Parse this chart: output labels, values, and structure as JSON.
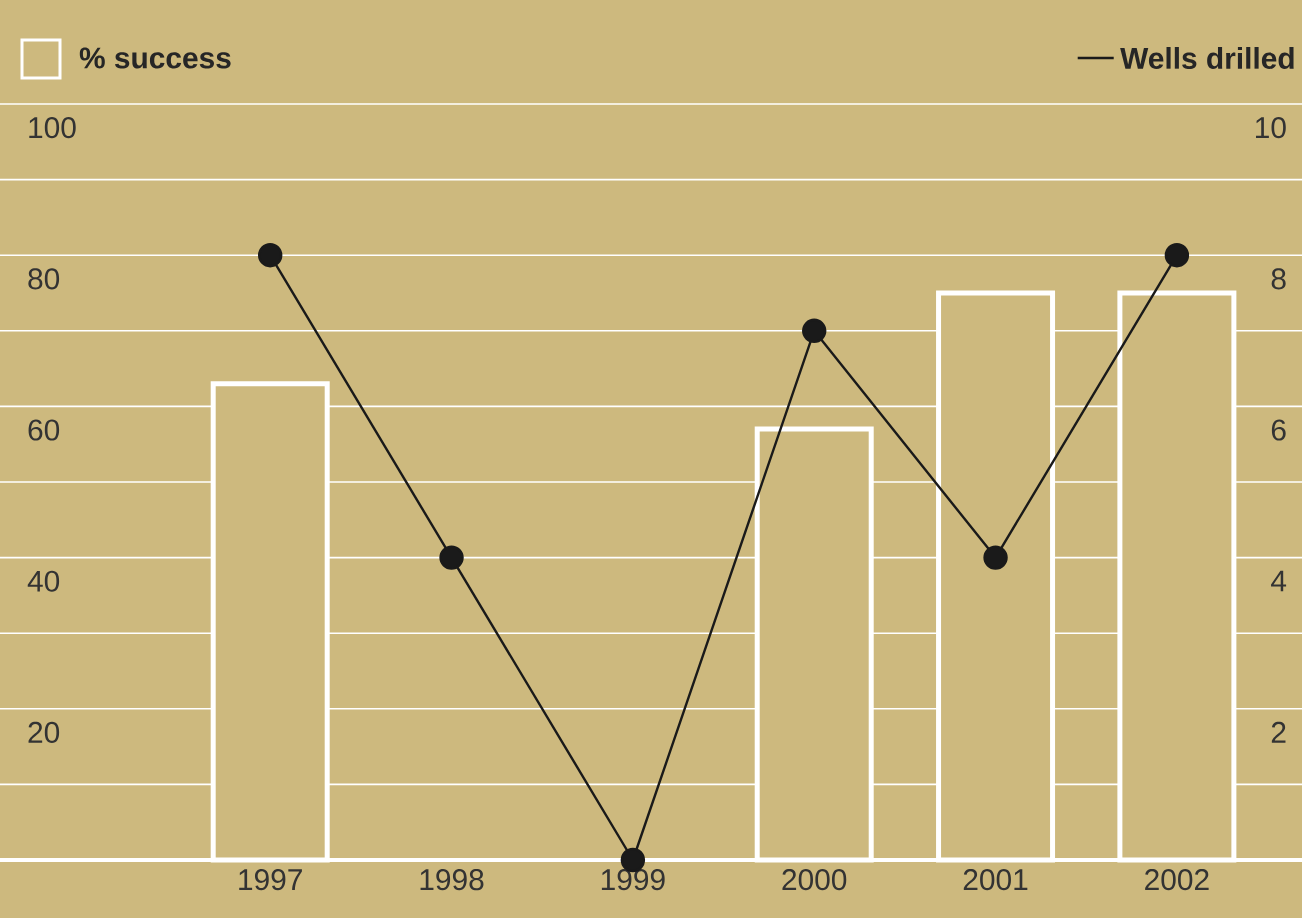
{
  "chart_data": {
    "type": "bar",
    "categories": [
      "1997",
      "1998",
      "1999",
      "2000",
      "2001",
      "2002"
    ],
    "series": [
      {
        "name": "% success",
        "color": "#ffffff",
        "values": [
          63,
          null,
          null,
          57,
          75,
          75
        ]
      },
      {
        "name": "Wells drilled",
        "type": "line",
        "axis": "y2",
        "color": "#1a1a1a",
        "values": [
          8,
          4,
          0,
          7,
          4,
          8
        ]
      }
    ],
    "ylim": [
      0,
      100
    ],
    "yticks": [
      {
        "value": 10,
        "label": null
      },
      20,
      {
        "value": 30,
        "label": null
      },
      40,
      {
        "value": 50,
        "label": null
      },
      60,
      {
        "value": 70,
        "label": null
      },
      80,
      {
        "value": 90,
        "label": null
      },
      100
    ],
    "y2lim": [
      0,
      10
    ],
    "y2ticks": [
      2,
      4,
      6,
      8,
      10
    ],
    "grid": "y",
    "legend": "top",
    "marker": "circle",
    "line_style": "solid"
  }
}
